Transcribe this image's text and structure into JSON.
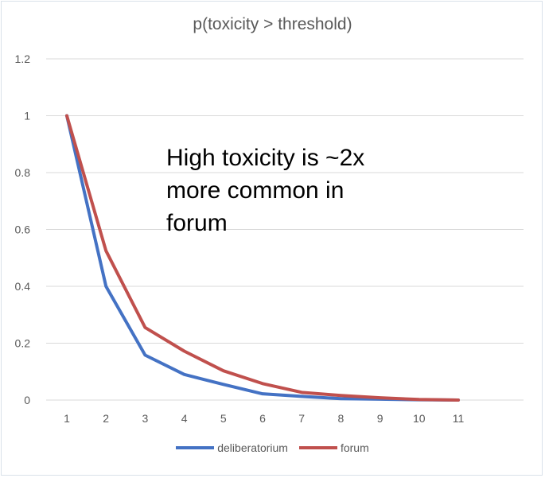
{
  "chart_data": {
    "type": "line",
    "title": "p(toxicity > threshold)",
    "annotation": "High toxicity is ~2x more common in forum",
    "x": [
      1,
      2,
      3,
      4,
      5,
      6,
      7,
      8,
      9,
      10,
      11
    ],
    "ylim": [
      0,
      1.2
    ],
    "yticks": [
      "0",
      "0.2",
      "0.4",
      "0.6",
      "0.8",
      "1",
      "1.2"
    ],
    "xticks": [
      "1",
      "2",
      "3",
      "4",
      "5",
      "6",
      "7",
      "8",
      "9",
      "10",
      "11"
    ],
    "grid": true,
    "legend_position": "bottom",
    "series": [
      {
        "name": "deliberatorium",
        "color": "#4472c4",
        "values": [
          1.0,
          0.4,
          0.158,
          0.09,
          0.055,
          0.022,
          0.013,
          0.005,
          0.003,
          0.001,
          0.0
        ]
      },
      {
        "name": "forum",
        "color": "#c0504d",
        "values": [
          1.0,
          0.525,
          0.255,
          0.172,
          0.103,
          0.058,
          0.027,
          0.016,
          0.008,
          0.002,
          0.0
        ]
      }
    ]
  }
}
